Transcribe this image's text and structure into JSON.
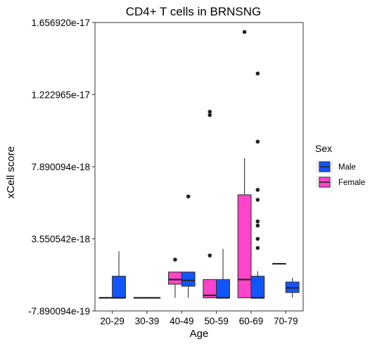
{
  "chart_data": {
    "type": "box",
    "title": "CD4+ T cells in BRNSNG",
    "xlabel": "Age",
    "ylabel": "xCell score",
    "categories": [
      "20-29",
      "30-39",
      "40-49",
      "50-59",
      "60-69",
      "70-79"
    ],
    "y_ticks": [
      "-7.890094e-19",
      "3.550542e-18",
      "7.890094e-18",
      "1.222965e-17",
      "1.656920e-17"
    ],
    "ylim": [
      -7.890094e-19,
      1.65692e-17
    ],
    "grid": false,
    "legend": {
      "title": "Sex",
      "position": "right",
      "entries": [
        {
          "name": "Male",
          "color": "#1155FF"
        },
        {
          "name": "Female",
          "color": "#FF44CC"
        }
      ]
    },
    "series": [
      {
        "name": "Female",
        "color": "#FF44CC",
        "boxes": [
          {
            "category": "20-29",
            "min": 0.0,
            "q1": 0.0,
            "median": 0.0,
            "q3": 0.0,
            "max": 0.0,
            "outliers": []
          },
          {
            "category": "30-39",
            "min": 0.0,
            "q1": 0.0,
            "median": 0.0,
            "q3": 0.0,
            "max": 0.0,
            "outliers": []
          },
          {
            "category": "40-49",
            "min": 0.0,
            "q1": 8.2e-19,
            "median": 1.1e-18,
            "q3": 1.55e-18,
            "max": 1.55e-18,
            "outliers": [
              2.3e-18
            ]
          },
          {
            "category": "50-59",
            "min": 0.0,
            "q1": 0.0,
            "median": 1.5e-19,
            "q3": 1.1e-18,
            "max": 1.1e-18,
            "outliers": [
              2.55e-18,
              1.1e-17,
              1.12e-17
            ]
          },
          {
            "category": "60-69",
            "min": 0.0,
            "q1": 0.0,
            "median": 1.1e-18,
            "q3": 6.2e-18,
            "max": 8.4e-18,
            "outliers": [
              1.6e-17
            ]
          },
          {
            "category": "70-79",
            "min": 2.05e-18,
            "q1": 2.05e-18,
            "median": 2.05e-18,
            "q3": 2.05e-18,
            "max": 2.05e-18,
            "outliers": []
          }
        ]
      },
      {
        "name": "Male",
        "color": "#1155FF",
        "boxes": [
          {
            "category": "20-29",
            "min": 0.0,
            "q1": 0.0,
            "median": 0.0,
            "q3": 1.3e-18,
            "max": 2.8e-18,
            "outliers": []
          },
          {
            "category": "30-39",
            "min": 0.0,
            "q1": 0.0,
            "median": 0.0,
            "q3": 0.0,
            "max": 0.0,
            "outliers": []
          },
          {
            "category": "40-49",
            "min": 0.0,
            "q1": 7e-19,
            "median": 1.05e-18,
            "q3": 1.55e-18,
            "max": 1.55e-18,
            "outliers": [
              6.1e-18
            ]
          },
          {
            "category": "50-59",
            "min": 0.0,
            "q1": 0.0,
            "median": 0.0,
            "q3": 1.1e-18,
            "max": 2.95e-18,
            "outliers": []
          },
          {
            "category": "60-69",
            "min": 0.0,
            "q1": 0.0,
            "median": 0.0,
            "q3": 1.3e-18,
            "max": 1.6e-18,
            "outliers": [
              3e-18,
              3.55e-18,
              4.35e-18,
              4.6e-18,
              5.9e-18,
              6.5e-18,
              9.4e-18,
              1.35e-17
            ]
          },
          {
            "category": "70-79",
            "min": 0.0,
            "q1": 3.2e-19,
            "median": 6e-19,
            "q3": 9.5e-19,
            "max": 1.2e-18,
            "outliers": []
          }
        ]
      }
    ]
  }
}
